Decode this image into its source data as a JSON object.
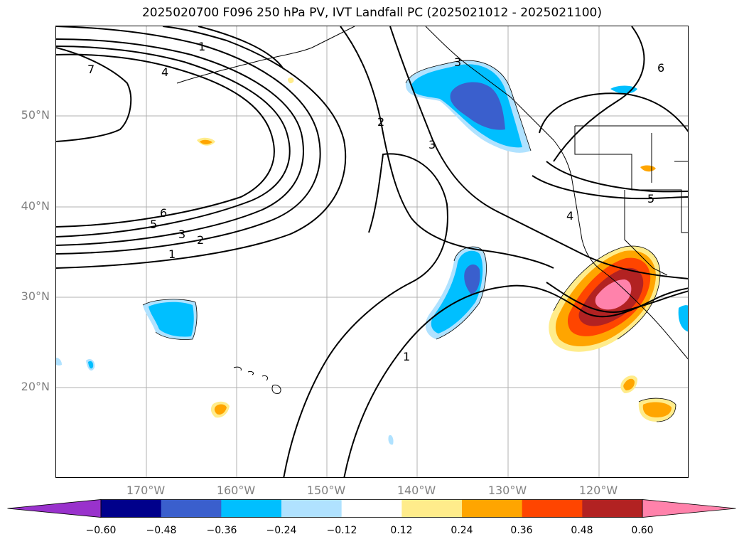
{
  "title": "2025020700 F096 250 hPa PV, IVT Landfall PC (2025021012 - 2025021100)",
  "latitude_labels": [
    "50°N",
    "40°N",
    "30°N",
    "20°N"
  ],
  "longitude_labels": [
    "170°W",
    "160°W",
    "150°W",
    "140°W",
    "130°W",
    "120°W"
  ],
  "contour_labels": [
    "7",
    "4",
    "1",
    "2",
    "3",
    "6",
    "5",
    "3",
    "2",
    "1",
    "6",
    "5",
    "4",
    "1",
    "3"
  ],
  "colorbar": {
    "ticks": [
      "−0.60",
      "−0.48",
      "−0.36",
      "−0.24",
      "−0.12",
      "0.12",
      "0.24",
      "0.36",
      "0.48",
      "0.60"
    ],
    "colors": [
      "#9932cc",
      "#00008b",
      "#3a5fcd",
      "#00bfff",
      "#b0e2ff",
      "#ffffff",
      "#ffec8b",
      "#ffa500",
      "#ff4500",
      "#b22222",
      "#ff82ab"
    ]
  },
  "fill_colors": {
    "neg_light": "#b0e2ff",
    "neg_mid": "#00bfff",
    "neg_dark": "#3a5fcd",
    "pos_light": "#ffec8b",
    "pos_orange": "#ffa500",
    "pos_red": "#ff4500",
    "pos_dark": "#b22222",
    "pos_pink": "#ff82ab"
  }
}
